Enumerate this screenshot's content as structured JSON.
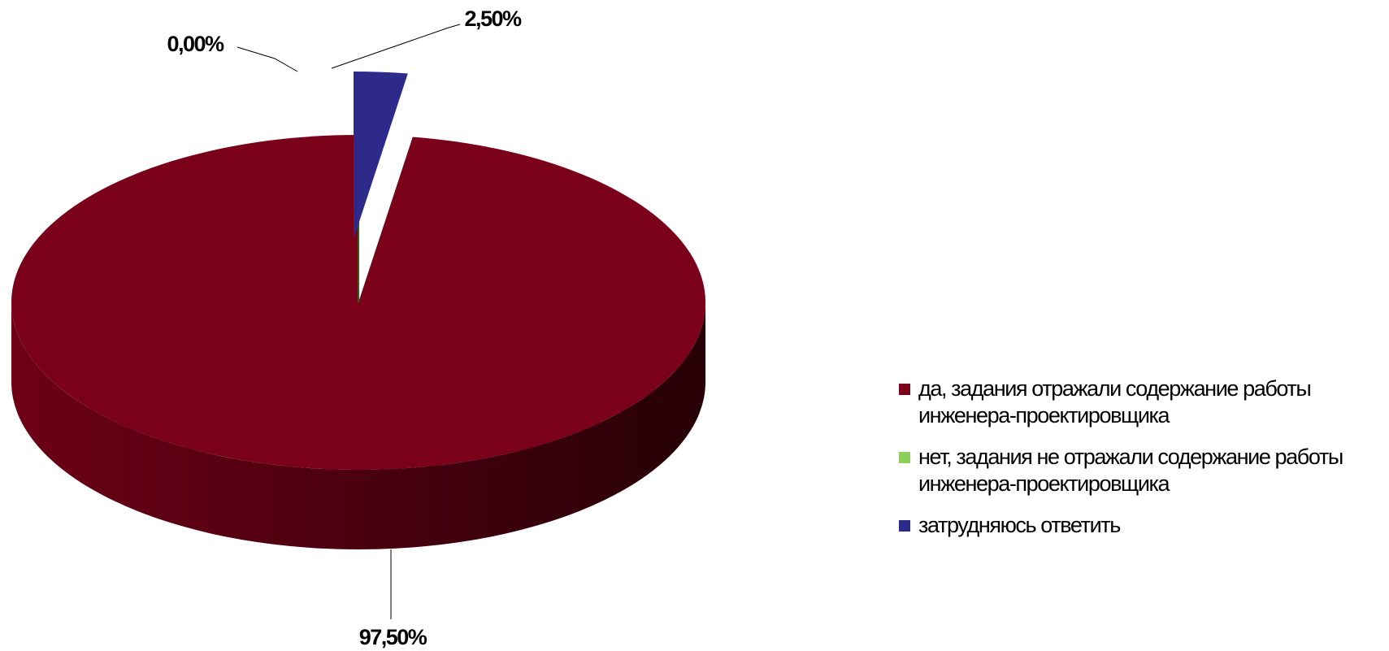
{
  "chart_data": {
    "type": "pie",
    "categories": [
      "да, задания отражали содержание работы инженера-проектировщика",
      "нет, задания не отражали содержание работы инженера-проектировщика",
      "затрудняюсь ответить"
    ],
    "values": [
      97.5,
      0,
      2.5
    ],
    "value_labels": [
      "97,50%",
      "0,00%",
      "2,50%"
    ],
    "colors": [
      "#7b0019",
      "#8ccf5a",
      "#2e2a8c"
    ],
    "legend": "right"
  }
}
